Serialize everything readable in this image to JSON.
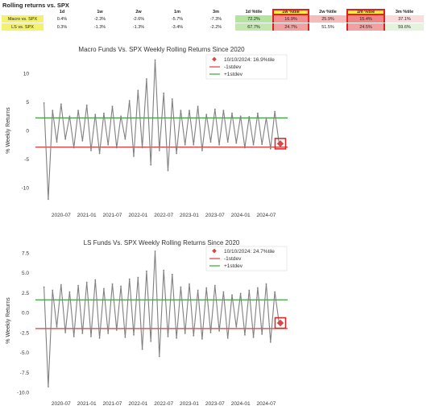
{
  "page_title": "Rolling returns vs. SPX",
  "table": {
    "columns": [
      "",
      "1d",
      "1w",
      "2w",
      "1m",
      "3m",
      "1d %tile",
      "1w %tile",
      "2w %tile",
      "1m %tile",
      "3m %tile"
    ],
    "highlighted_columns": [
      7,
      9
    ],
    "rows": [
      {
        "label": "Macro vs. SPX",
        "cells": [
          "0.4%",
          "-2.3%",
          "-2.6%",
          "-5.7%",
          "-7.3%",
          "72.2%",
          "16.9%",
          "25.9%",
          "15.4%",
          "37.1%"
        ],
        "bg": [
          "",
          "",
          "",
          "",
          "",
          "#b5e3a2",
          "#f28e8e",
          "#f6bcbc",
          "#ef8585",
          "#fbdcdc"
        ]
      },
      {
        "label": "LS vs. SPX",
        "cells": [
          "0.3%",
          "-1.3%",
          "-1.3%",
          "-3.4%",
          "-2.2%",
          "67.7%",
          "24.7%",
          "51.5%",
          "24.5%",
          "59.6%"
        ],
        "bg": [
          "",
          "",
          "",
          "",
          "",
          "#c2e8b0",
          "#f3a0a0",
          "",
          "#f3a0a0",
          "#e4f4dc"
        ]
      }
    ]
  },
  "chart_data": [
    {
      "type": "line",
      "title": "Macro Funds Vs. SPX Weekly Rolling Returns Since 2020",
      "ylabel": "% Weekly Returns",
      "xlabel": "",
      "x_ticks": [
        "2020-07",
        "2021-01",
        "2021-07",
        "2022-01",
        "2022-07",
        "2023-01",
        "2023-07",
        "2024-01",
        "2024-07"
      ],
      "y_ticks": [
        10,
        5,
        0,
        -5,
        -10
      ],
      "ylim": [
        -13.5,
        13.5
      ],
      "xlim": [
        "2020-01",
        "2024-12"
      ],
      "minus_1stdev": -2.9,
      "plus_1stdev": 2.2,
      "latest_point": {
        "x": "2024-10-10",
        "y": -2.3,
        "label": "10/10/2024: 16.9%tile"
      },
      "legend": [
        "10/10/2024: 16.9%tile",
        "-1stdev",
        "+1stdev"
      ],
      "legend_position": "top-right",
      "colors": {
        "line": "#808080",
        "minus": "#e03a3a",
        "plus": "#3aa23a",
        "marker": "#d64848"
      },
      "series": [
        {
          "x": [
            "2020-03",
            "2020-04",
            "2020-05",
            "2020-06",
            "2020-07",
            "2020-08",
            "2020-09",
            "2020-10",
            "2020-11",
            "2020-12",
            "2021-01",
            "2021-02",
            "2021-03",
            "2021-04",
            "2021-05",
            "2021-06",
            "2021-07",
            "2021-08",
            "2021-09",
            "2021-10",
            "2021-11",
            "2021-12",
            "2022-01",
            "2022-02",
            "2022-03",
            "2022-04",
            "2022-05",
            "2022-06",
            "2022-07",
            "2022-08",
            "2022-09",
            "2022-10",
            "2022-11",
            "2022-12",
            "2023-01",
            "2023-02",
            "2023-03",
            "2023-04",
            "2023-05",
            "2023-06",
            "2023-07",
            "2023-08",
            "2023-09",
            "2023-10",
            "2023-11",
            "2023-12",
            "2024-01",
            "2024-02",
            "2024-03",
            "2024-04",
            "2024-05",
            "2024-06",
            "2024-07",
            "2024-08",
            "2024-09",
            "2024-10"
          ],
          "y": [
            4.8,
            -12,
            3.5,
            -2,
            4.6,
            -1.5,
            2.5,
            -3,
            3.5,
            -1.8,
            4.4,
            -3.5,
            2.8,
            -4,
            3,
            -2.5,
            4.2,
            -3,
            2.5,
            -1.5,
            5.2,
            -4.5,
            7,
            -3,
            9,
            -6,
            12.3,
            -3.5,
            6.5,
            -7,
            5.5,
            -4,
            3.5,
            -2.5,
            3.5,
            -2.5,
            4.2,
            -3.5,
            2.8,
            -2,
            3.7,
            -2.5,
            3.5,
            -2,
            3,
            -2.2,
            2.5,
            -3,
            2.4,
            -2.5,
            3,
            -2.4,
            2.2,
            -3.2,
            3.3,
            -2.3
          ]
        }
      ]
    },
    {
      "type": "line",
      "title": "LS Funds Vs. SPX Weekly Rolling Returns Since 2020",
      "ylabel": "% Weekly Returns",
      "xlabel": "",
      "x_ticks": [
        "2020-07",
        "2021-01",
        "2021-07",
        "2022-01",
        "2022-07",
        "2023-01",
        "2023-07",
        "2024-01",
        "2024-07"
      ],
      "y_ticks": [
        7.5,
        5.0,
        2.5,
        0.0,
        -2.5,
        -5.0,
        -7.5,
        -10.0
      ],
      "ylim": [
        -10.5,
        8.5
      ],
      "xlim": [
        "2020-01",
        "2024-12"
      ],
      "minus_1stdev": -2.0,
      "plus_1stdev": 1.6,
      "latest_point": {
        "x": "2024-10-10",
        "y": -1.3,
        "label": "10/10/2024: 24.7%tile"
      },
      "legend": [
        "10/10/2024: 24.7%tile",
        "-1stdev",
        "+1stdev"
      ],
      "legend_position": "top-right",
      "colors": {
        "line": "#808080",
        "minus": "#e03a3a",
        "plus": "#3aa23a",
        "marker": "#d64848"
      },
      "series": [
        {
          "x": [
            "2020-03",
            "2020-04",
            "2020-05",
            "2020-06",
            "2020-07",
            "2020-08",
            "2020-09",
            "2020-10",
            "2020-11",
            "2020-12",
            "2021-01",
            "2021-02",
            "2021-03",
            "2021-04",
            "2021-05",
            "2021-06",
            "2021-07",
            "2021-08",
            "2021-09",
            "2021-10",
            "2021-11",
            "2021-12",
            "2022-01",
            "2022-02",
            "2022-03",
            "2022-04",
            "2022-05",
            "2022-06",
            "2022-07",
            "2022-08",
            "2022-09",
            "2022-10",
            "2022-11",
            "2022-12",
            "2023-01",
            "2023-02",
            "2023-03",
            "2023-04",
            "2023-05",
            "2023-06",
            "2023-07",
            "2023-08",
            "2023-09",
            "2023-10",
            "2023-11",
            "2023-12",
            "2024-01",
            "2024-02",
            "2024-03",
            "2024-04",
            "2024-05",
            "2024-06",
            "2024-07",
            "2024-08",
            "2024-09",
            "2024-10"
          ],
          "y": [
            3.2,
            -9.3,
            2.8,
            -1.8,
            3.5,
            -2.5,
            2.6,
            -3,
            3.4,
            -2.6,
            3.8,
            -3,
            4.1,
            -3.2,
            3,
            -2.6,
            3.6,
            -2.2,
            3.3,
            -3.1,
            4.2,
            -2.8,
            4.4,
            -4.6,
            5.2,
            -3.6,
            7.7,
            -5.5,
            5.3,
            -3,
            4.8,
            -3.2,
            3.2,
            -2.6,
            3.6,
            -2.9,
            2.8,
            -3.3,
            3.1,
            -2.5,
            3.4,
            -2.3,
            2.6,
            -3.2,
            2.2,
            -1.8,
            2.4,
            -2.8,
            2.8,
            -3.1,
            3.1,
            -2.7,
            3.6,
            -3.7,
            2.6,
            -1.3
          ]
        }
      ]
    }
  ]
}
